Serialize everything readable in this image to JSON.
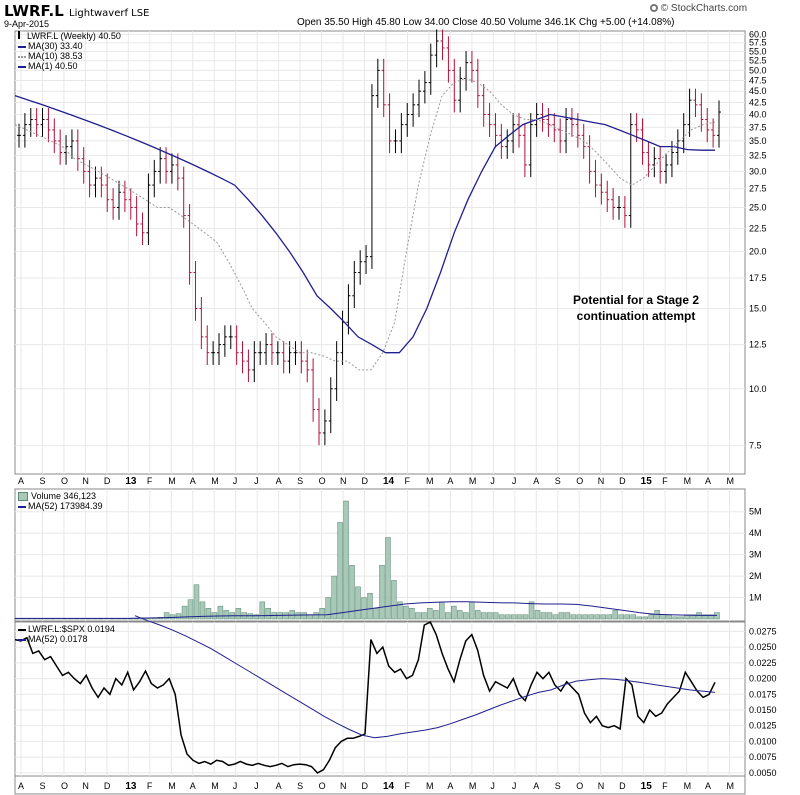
{
  "header": {
    "symbol": "LWRF.L",
    "name": "Lightwaverf LSE",
    "date": "9-Apr-2015",
    "ohlc": "Open 35.50  High 45.80  Low 34.00  Close 40.50  Volume 346.1K  Chg +5.00 (+14.08%)",
    "logo": "© StockCharts.com",
    "logo_icon": "bullseye-logo-icon"
  },
  "colors": {
    "price_up": "#000000",
    "price_down": "#b0103a",
    "ma_long": "#1f1f8f",
    "ma_short": "#999999",
    "volume_bar": "#a8c8b8",
    "volume_bar_stroke": "#5a8a73",
    "ratio_line": "#000000",
    "grid": "#e8e8e8"
  },
  "annotation": [
    "Potential for a Stage 2",
    "continuation attempt"
  ],
  "x_axis": {
    "labels": [
      "A",
      "S",
      "O",
      "N",
      "D",
      "13",
      "F",
      "M",
      "A",
      "M",
      "J",
      "J",
      "A",
      "S",
      "O",
      "N",
      "D",
      "14",
      "F",
      "M",
      "A",
      "M",
      "J",
      "J",
      "A",
      "S",
      "O",
      "N",
      "D",
      "15",
      "F",
      "M",
      "A",
      "M"
    ],
    "bold": [
      "13",
      "14",
      "15"
    ]
  },
  "chart_data": [
    {
      "type": "ohlc",
      "title": "LWRF.L (Weekly) 40.50",
      "scale": "log",
      "ylim": [
        6.5,
        61
      ],
      "y_ticks": [
        "7.5",
        "10.0",
        "12.5",
        "15.0",
        "17.5",
        "20.0",
        "22.5",
        "25.0",
        "27.5",
        "30.0",
        "32.5",
        "35.0",
        "37.5",
        "40.0",
        "42.5",
        "45.0",
        "47.5",
        "50.0",
        "52.5",
        "55.0",
        "57.5",
        "60.0"
      ],
      "legend": [
        "LWRF.L (Weekly) 40.50",
        "MA(30) 33.40",
        "MA(10) 38.53",
        "MA(1) 40.50"
      ],
      "close_weekly": [
        36,
        38,
        39,
        38,
        39,
        37,
        35,
        33,
        34,
        35,
        32,
        30,
        28,
        29,
        28,
        26,
        25,
        27,
        26,
        25,
        23,
        22,
        28,
        30,
        32,
        30,
        31,
        29,
        24,
        18,
        15,
        13,
        12,
        12,
        12.5,
        13,
        13,
        12,
        11.5,
        11,
        12,
        12,
        12.5,
        12,
        12,
        11.5,
        12,
        12,
        11.5,
        11,
        9,
        8,
        8.5,
        10,
        12,
        14,
        16,
        18,
        19,
        19.5,
        44,
        50,
        42,
        35,
        35,
        38,
        40,
        42,
        45,
        47,
        54,
        58,
        56,
        50,
        43,
        48,
        52,
        50,
        44,
        40,
        38,
        36,
        34,
        35,
        38,
        36,
        31,
        38,
        40,
        39,
        38,
        37,
        35,
        39,
        38,
        36,
        34,
        30,
        28,
        27,
        26,
        25,
        25,
        24,
        38,
        37,
        33,
        31,
        32,
        30,
        31,
        33,
        35,
        38,
        43,
        42,
        39,
        37,
        36,
        40.5
      ],
      "ma30": [
        44,
        43,
        42,
        41,
        40,
        39,
        38,
        37,
        36,
        35,
        34,
        33,
        32,
        31,
        30,
        29,
        28,
        26,
        24,
        22,
        20,
        18,
        16,
        15,
        14,
        13,
        12.5,
        12,
        12,
        13,
        15,
        18,
        22,
        26,
        30,
        34,
        36,
        38,
        39,
        40,
        39.5,
        39,
        38.5,
        38,
        37,
        36,
        35,
        34,
        34,
        33.5,
        33.4,
        33.4
      ],
      "ma10": [
        38,
        37,
        36,
        35,
        34,
        32,
        31,
        30,
        29,
        28,
        27,
        26,
        25,
        25,
        24,
        23,
        22,
        21,
        19,
        17,
        15,
        14,
        13,
        12.5,
        12,
        12,
        11.8,
        11.5,
        11.5,
        11,
        11,
        12,
        14,
        20,
        28,
        36,
        44,
        47,
        48,
        47,
        45,
        42,
        40,
        39,
        39,
        38,
        37,
        36,
        35,
        33,
        31,
        29,
        28,
        29,
        31,
        33,
        35,
        37,
        38,
        38.5
      ]
    },
    {
      "type": "bar",
      "title": "Volume 346,123",
      "legend": [
        "Volume 346,123",
        "MA(52) 173984.39"
      ],
      "y_ticks": [
        "1M",
        "2M",
        "3M",
        "4M",
        "5M"
      ],
      "ylim": [
        0,
        5.5
      ],
      "values_millions": [
        0.02,
        0.02,
        0.02,
        0.02,
        0.02,
        0.02,
        0.02,
        0.03,
        0.02,
        0.02,
        0.02,
        0.02,
        0.02,
        0.02,
        0.02,
        0.03,
        0.02,
        0.02,
        0.02,
        0.02,
        0.02,
        0.04,
        0.05,
        0.06,
        0.08,
        0.3,
        0.2,
        0.25,
        0.6,
        0.9,
        1.6,
        0.8,
        0.5,
        0.3,
        0.6,
        0.4,
        0.3,
        0.5,
        0.3,
        0.25,
        0.2,
        0.8,
        0.5,
        0.3,
        0.3,
        0.3,
        0.4,
        0.3,
        0.3,
        0.2,
        0.3,
        0.5,
        1.0,
        2.0,
        4.5,
        5.5,
        2.5,
        1.5,
        1.0,
        1.2,
        0.5,
        2.5,
        3.8,
        1.8,
        0.8,
        0.6,
        0.5,
        0.3,
        0.3,
        0.5,
        0.4,
        0.8,
        0.3,
        0.6,
        0.4,
        0.3,
        0.8,
        0.4,
        0.3,
        0.3,
        0.3,
        0.2,
        0.2,
        0.2,
        0.2,
        0.2,
        0.8,
        0.4,
        0.3,
        0.3,
        0.2,
        0.3,
        0.3,
        0.2,
        0.2,
        0.2,
        0.2,
        0.2,
        0.2,
        0.2,
        0.4,
        0.2,
        0.2,
        0.2,
        0.1,
        0.1,
        0.2,
        0.4,
        0.2,
        0.2,
        0.1,
        0.1,
        0.2,
        0.2,
        0.3,
        0.2,
        0.2,
        0.3
      ],
      "ma52_millions": [
        0.03,
        0.03,
        0.03,
        0.03,
        0.03,
        0.03,
        0.03,
        0.03,
        0.04,
        0.05,
        0.07,
        0.1,
        0.12,
        0.14,
        0.15,
        0.15,
        0.16,
        0.17,
        0.18,
        0.19,
        0.2,
        0.3,
        0.4,
        0.5,
        0.6,
        0.7,
        0.75,
        0.78,
        0.8,
        0.8,
        0.78,
        0.76,
        0.75,
        0.72,
        0.7,
        0.7,
        0.68,
        0.6,
        0.5,
        0.4,
        0.3,
        0.22,
        0.2,
        0.18,
        0.17,
        0.17
      ]
    },
    {
      "type": "line",
      "title": "LWRF.L:$SPX 0.0194",
      "legend": [
        "LWRF.L:$SPX 0.0194",
        "MA(52) 0.0178"
      ],
      "y_ticks": [
        "0.0050",
        "0.0075",
        "0.0100",
        "0.0125",
        "0.0150",
        "0.0175",
        "0.0200",
        "0.0225",
        "0.0250",
        "0.0275"
      ],
      "ylim": [
        0.0045,
        0.029
      ],
      "values": [
        0.0262,
        0.026,
        0.0265,
        0.024,
        0.0244,
        0.023,
        0.0235,
        0.022,
        0.0205,
        0.021,
        0.02,
        0.0192,
        0.0205,
        0.0185,
        0.017,
        0.0185,
        0.0175,
        0.02,
        0.019,
        0.021,
        0.0182,
        0.0195,
        0.0212,
        0.0192,
        0.0185,
        0.019,
        0.02,
        0.0175,
        0.011,
        0.008,
        0.007,
        0.0065,
        0.0068,
        0.0064,
        0.007,
        0.0068,
        0.0062,
        0.0064,
        0.0068,
        0.0064,
        0.0062,
        0.0065,
        0.0062,
        0.006,
        0.0062,
        0.0065,
        0.006,
        0.0063,
        0.0064,
        0.0063,
        0.006,
        0.005,
        0.0055,
        0.007,
        0.009,
        0.01,
        0.0105,
        0.0105,
        0.0108,
        0.0112,
        0.0262,
        0.024,
        0.025,
        0.022,
        0.021,
        0.0215,
        0.02,
        0.0205,
        0.023,
        0.0285,
        0.029,
        0.027,
        0.024,
        0.0215,
        0.0195,
        0.023,
        0.026,
        0.027,
        0.0245,
        0.0205,
        0.018,
        0.0195,
        0.019,
        0.0185,
        0.02,
        0.0175,
        0.0165,
        0.019,
        0.021,
        0.02,
        0.021,
        0.019,
        0.018,
        0.0195,
        0.0185,
        0.0175,
        0.0145,
        0.013,
        0.014,
        0.0125,
        0.0122,
        0.0125,
        0.012,
        0.02,
        0.019,
        0.014,
        0.013,
        0.015,
        0.014,
        0.0145,
        0.016,
        0.017,
        0.018,
        0.021,
        0.0195,
        0.018,
        0.017,
        0.0175,
        0.0194
      ],
      "ma52": [
        0.03,
        0.0292,
        0.0285,
        0.0277,
        0.0268,
        0.0258,
        0.0248,
        0.0236,
        0.0224,
        0.0212,
        0.02,
        0.0188,
        0.0176,
        0.0164,
        0.0152,
        0.014,
        0.0129,
        0.0119,
        0.011,
        0.0106,
        0.0108,
        0.0112,
        0.0115,
        0.0118,
        0.0122,
        0.0128,
        0.0135,
        0.0142,
        0.015,
        0.0158,
        0.0165,
        0.0172,
        0.0178,
        0.0182,
        0.019,
        0.0196,
        0.0198,
        0.02,
        0.0199,
        0.0197,
        0.0194,
        0.0191,
        0.0188,
        0.0185,
        0.0182,
        0.018,
        0.0178
      ]
    }
  ]
}
